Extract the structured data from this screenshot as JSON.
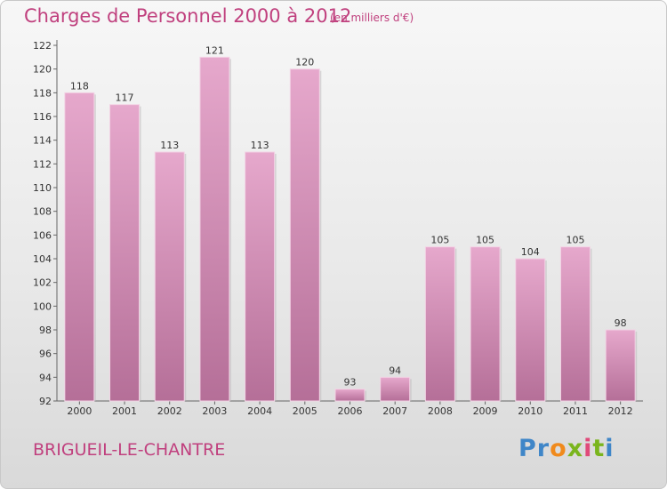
{
  "header": {
    "title": "Charges de Personnel 2000 à 2012",
    "subtitle": "(en milliers d'€)"
  },
  "footer": {
    "commune": "BRIGUEIL-LE-CHANTRE",
    "logo": [
      "P",
      "r",
      "o",
      "x",
      "i",
      "t",
      "i"
    ]
  },
  "colors": {
    "title": "#c0407e",
    "bar_top": "#e6a8cc",
    "bar_bottom": "#b56f98",
    "logo": [
      "#3f86c8",
      "#3f86c8",
      "#f08a1c",
      "#7ab51d",
      "#e04a7a",
      "#7ab51d",
      "#3f86c8"
    ]
  },
  "chart_data": {
    "type": "bar",
    "categories": [
      "2000",
      "2001",
      "2002",
      "2003",
      "2004",
      "2005",
      "2006",
      "2007",
      "2008",
      "2009",
      "2010",
      "2011",
      "2012"
    ],
    "values": [
      118,
      117,
      113,
      121,
      113,
      120,
      93,
      94,
      105,
      105,
      104,
      105,
      98
    ],
    "title": "Charges de Personnel 2000 à 2012",
    "subtitle": "(en milliers d'€)",
    "ylim": [
      92,
      122
    ],
    "yticks": [
      92,
      94,
      96,
      98,
      100,
      102,
      104,
      106,
      108,
      110,
      112,
      114,
      116,
      118,
      120,
      122
    ],
    "grid": false,
    "data_labels": true
  }
}
